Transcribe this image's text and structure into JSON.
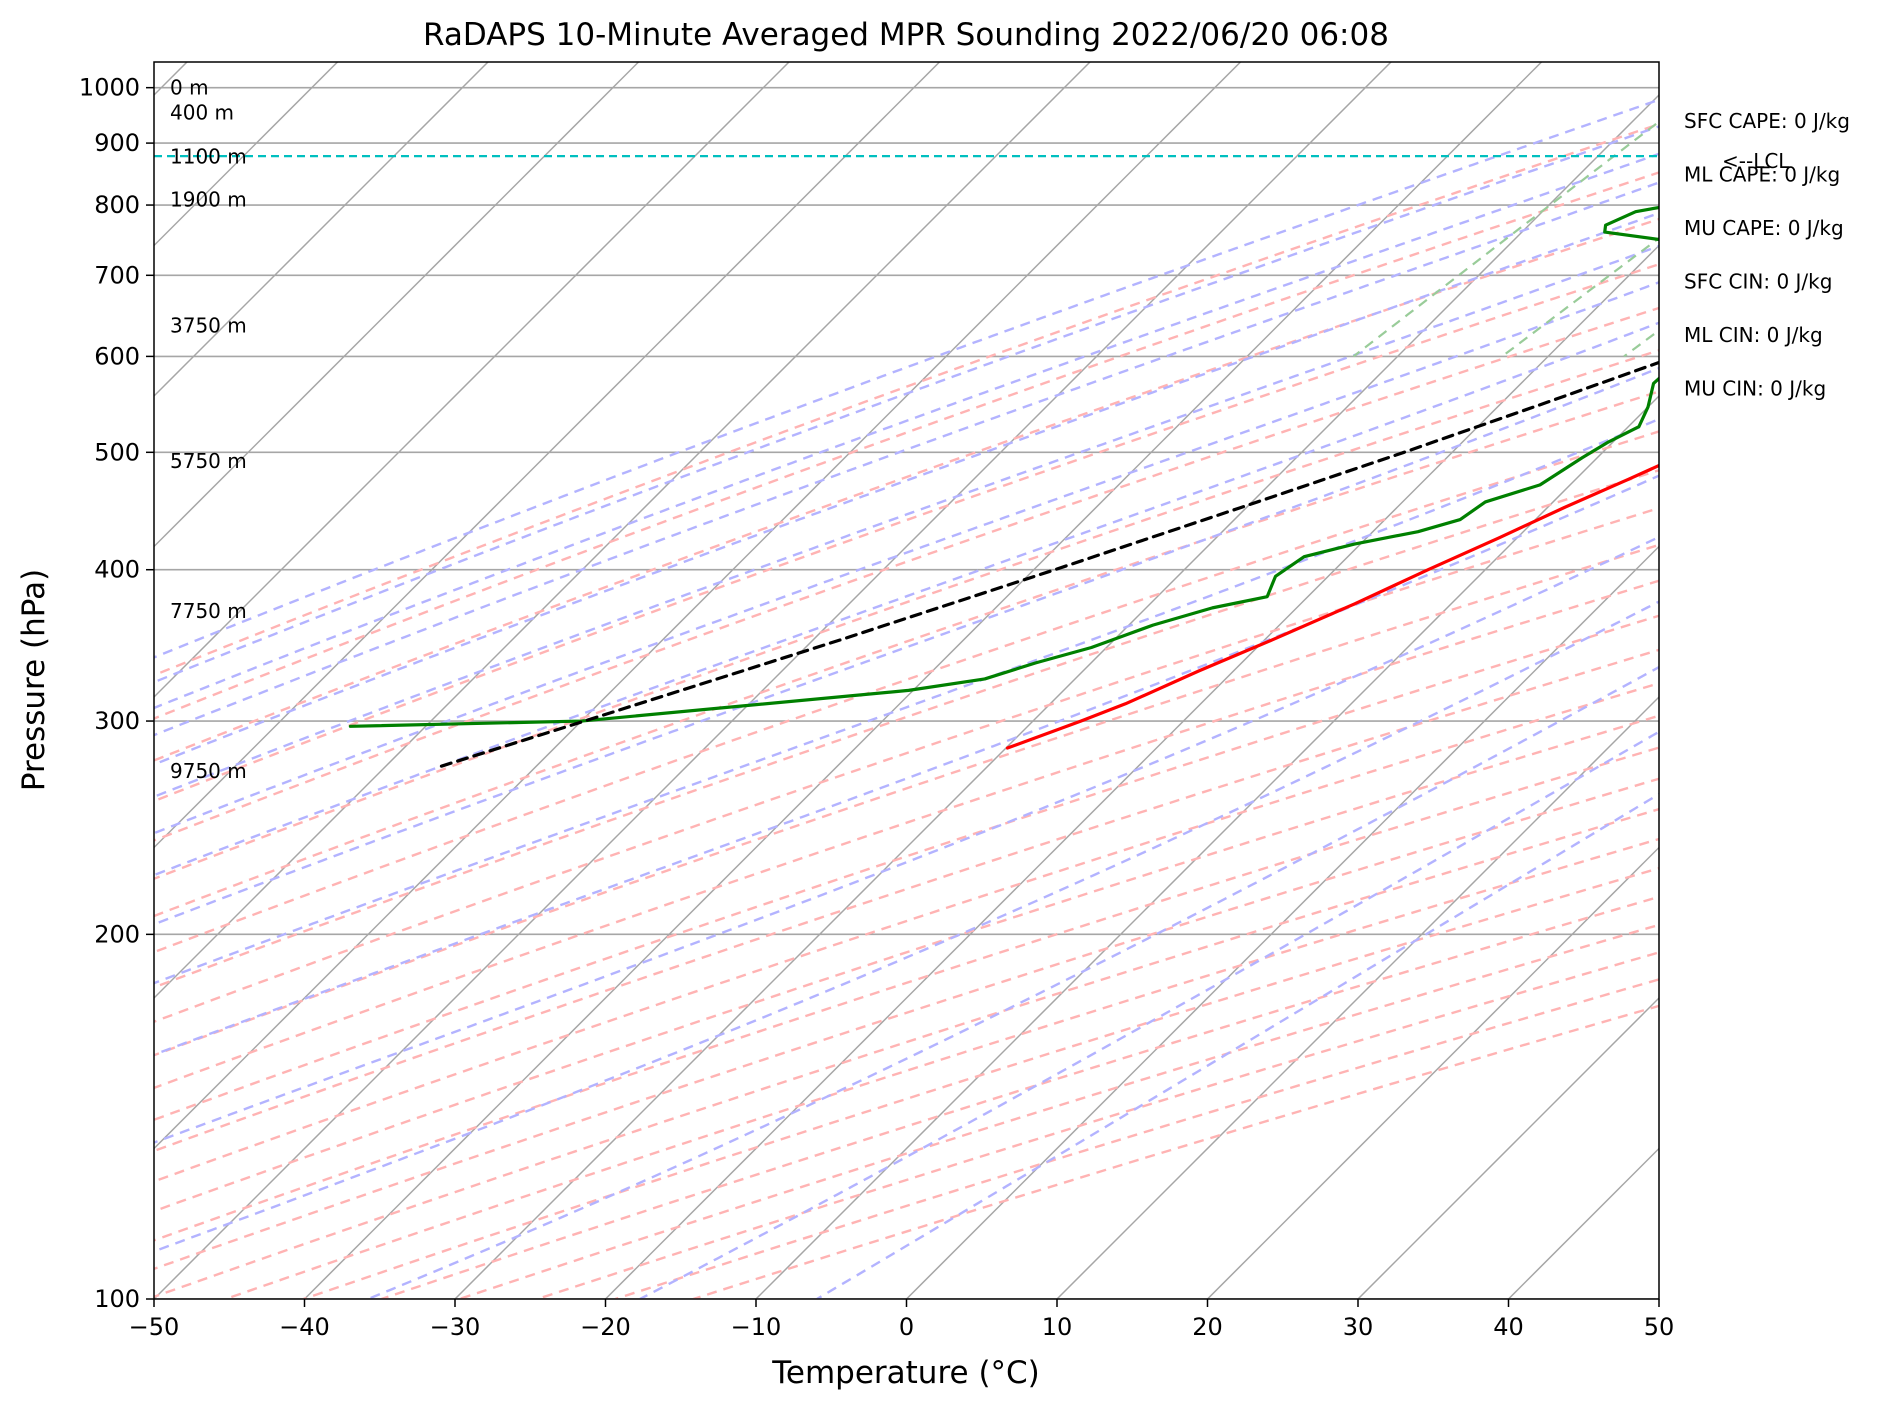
{
  "chart_data": {
    "type": "skew-t",
    "title": "RaDAPS 10-Minute Averaged MPR Sounding 2022/06/20 06:08",
    "xlabel": "Temperature (°C)",
    "ylabel": "Pressure (hPa)",
    "xlim": [
      -50,
      50
    ],
    "ylim": [
      1050,
      100
    ],
    "y_scale": "log",
    "grid": true,
    "x_ticks": [
      "−50",
      "−40",
      "−30",
      "−20",
      "−10",
      "0",
      "10",
      "20",
      "30",
      "40",
      "50"
    ],
    "x_tick_values": [
      -50,
      -40,
      -30,
      -20,
      -10,
      0,
      10,
      20,
      30,
      40,
      50
    ],
    "y_ticks": [
      "100",
      "200",
      "300",
      "400",
      "500",
      "600",
      "700",
      "800",
      "900",
      "1000"
    ],
    "y_tick_values": [
      100,
      200,
      300,
      400,
      500,
      600,
      700,
      800,
      900,
      1000
    ],
    "colors": {
      "temperature": "#ff0000",
      "dewpoint": "#008000",
      "parcel": "#000000",
      "lcl": "#00bfbf",
      "isotherm": "#a6a6a6",
      "dry_adiabat": "#ffb3b3",
      "moist_adiabat": "#b3b3ff",
      "mixing_ratio": "#99cc99",
      "isobar": "#a6a6a6"
    },
    "series": [
      {
        "key": "temperature",
        "points": [
          [
            1000,
            21.9
          ],
          [
            995,
            24.5
          ],
          [
            980,
            26.3
          ],
          [
            960,
            25.5
          ],
          [
            940,
            24.8
          ],
          [
            920,
            23.8
          ],
          [
            900,
            22.6
          ],
          [
            880,
            21.0
          ],
          [
            860,
            19.6
          ],
          [
            840,
            18.5
          ],
          [
            820,
            17.6
          ],
          [
            800,
            16.8
          ],
          [
            780,
            15.9
          ],
          [
            750,
            14.3
          ],
          [
            720,
            12.5
          ],
          [
            700,
            11.1
          ],
          [
            680,
            9.6
          ],
          [
            650,
            7.4
          ],
          [
            620,
            5.3
          ],
          [
            600,
            3.6
          ],
          [
            570,
            1.5
          ],
          [
            545,
            -0.4
          ],
          [
            520,
            -2.6
          ],
          [
            500,
            -4.3
          ],
          [
            475,
            -6.5
          ],
          [
            450,
            -8.9
          ],
          [
            425,
            -11.2
          ],
          [
            400,
            -13.8
          ],
          [
            375,
            -16.4
          ],
          [
            350,
            -19.5
          ],
          [
            330,
            -22.3
          ],
          [
            310,
            -25.0
          ],
          [
            300,
            -26.8
          ],
          [
            285,
            -29.9
          ]
        ]
      },
      {
        "key": "dewpoint",
        "points": [
          [
            1000,
            13.4
          ],
          [
            995,
            10.5
          ],
          [
            985,
            6.5
          ],
          [
            975,
            4.4
          ],
          [
            960,
            2.7
          ],
          [
            940,
            1.0
          ],
          [
            920,
            -0.2
          ],
          [
            905,
            -1.1
          ],
          [
            890,
            -2.1
          ],
          [
            880,
            -4.2
          ],
          [
            860,
            -10.5
          ],
          [
            845,
            -13.8
          ],
          [
            830,
            -16.3
          ],
          [
            810,
            -19.8
          ],
          [
            790,
            -23.8
          ],
          [
            770,
            -24.9
          ],
          [
            760,
            -24.5
          ],
          [
            740,
            -16.8
          ],
          [
            720,
            -11.8
          ],
          [
            700,
            -8.5
          ],
          [
            680,
            -6.0
          ],
          [
            660,
            -5.5
          ],
          [
            650,
            -8.5
          ],
          [
            620,
            -10.6
          ],
          [
            600,
            -11.0
          ],
          [
            570,
            -11.2
          ],
          [
            545,
            -10.0
          ],
          [
            525,
            -9.3
          ],
          [
            510,
            -10.3
          ],
          [
            495,
            -11.0
          ],
          [
            470,
            -12.0
          ],
          [
            455,
            -14.5
          ],
          [
            440,
            -15.0
          ],
          [
            430,
            -17.0
          ],
          [
            420,
            -20.4
          ],
          [
            410,
            -22.9
          ],
          [
            395,
            -23.5
          ],
          [
            380,
            -22.7
          ],
          [
            372,
            -25.6
          ],
          [
            360,
            -28.4
          ],
          [
            345,
            -31.0
          ],
          [
            335,
            -33.7
          ],
          [
            325,
            -36.0
          ],
          [
            318,
            -40.3
          ],
          [
            300,
            -60.0
          ],
          [
            297,
            -75.0
          ]
        ]
      },
      {
        "key": "parcel",
        "points": [
          [
            1000,
            21.9
          ],
          [
            950,
            17.8
          ],
          [
            900,
            13.5
          ],
          [
            878,
            11.7
          ],
          [
            850,
            9.7
          ],
          [
            800,
            5.9
          ],
          [
            750,
            1.9
          ],
          [
            700,
            -2.2
          ],
          [
            650,
            -6.6
          ],
          [
            600,
            -11.5
          ],
          [
            550,
            -17.0
          ],
          [
            500,
            -23.2
          ],
          [
            450,
            -30.4
          ],
          [
            400,
            -38.6
          ],
          [
            350,
            -48.2
          ],
          [
            300,
            -59.8
          ],
          [
            275,
            -66.4
          ]
        ]
      }
    ],
    "lcl": {
      "pressure": 878,
      "label": "<--LCL"
    },
    "height_labels": [
      {
        "pressure": 1000,
        "text": "0 m"
      },
      {
        "pressure": 953.6,
        "text": "400 m"
      },
      {
        "pressure": 877.5,
        "text": "1100 m"
      },
      {
        "pressure": 808.6,
        "text": "1900 m"
      },
      {
        "pressure": 636.4,
        "text": "3750 m"
      },
      {
        "pressure": 491.6,
        "text": "5750 m"
      },
      {
        "pressure": 369.7,
        "text": "7750 m"
      },
      {
        "pressure": 272.7,
        "text": "9750 m"
      }
    ],
    "indices": [
      {
        "label": "SFC CAPE: 0 J/kg"
      },
      {
        "label": "ML CAPE: 0 J/kg"
      },
      {
        "label": "MU CAPE: 0 J/kg"
      },
      {
        "label": "SFC CIN: 0 J/kg"
      },
      {
        "label": "ML CIN: 0 J/kg"
      },
      {
        "label": "MU CIN: 0 J/kg"
      }
    ]
  }
}
